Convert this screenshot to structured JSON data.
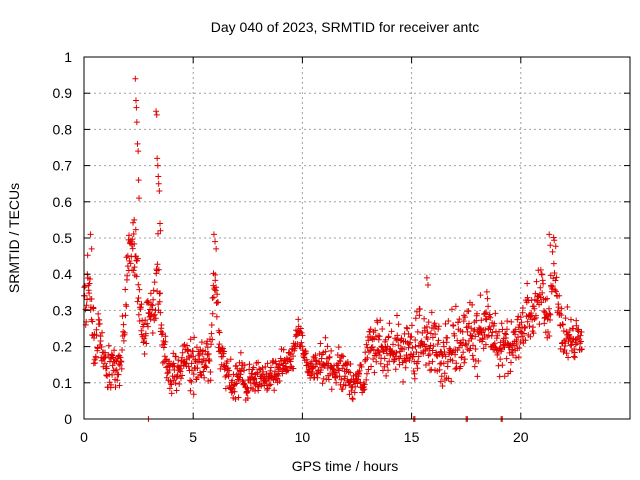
{
  "chart_data": {
    "type": "scatter",
    "title": "Day 040 of 2023, SRMTID for receiver antc",
    "xlabel": "GPS time / hours",
    "ylabel": "SRMTID / TECUs",
    "xlim": [
      0,
      25
    ],
    "ylim": [
      0,
      1
    ],
    "x_ticks": [
      0,
      5,
      10,
      15,
      20
    ],
    "x_tick_labels": [
      "0",
      "5",
      "10",
      "15",
      "20"
    ],
    "y_ticks": [
      0,
      0.1,
      0.2,
      0.3,
      0.4,
      0.5,
      0.6,
      0.7,
      0.8,
      0.9,
      1
    ],
    "y_tick_labels": [
      "0",
      "0.1",
      "0.2",
      "0.3",
      "0.4",
      "0.5",
      "0.6",
      "0.7",
      "0.8",
      "0.9",
      "1"
    ],
    "grid": true,
    "marker": "+",
    "color": "#e00000",
    "series_profile": {
      "name": "SRMTID",
      "x": [
        0.0,
        0.1,
        0.2,
        0.35,
        0.5,
        0.7,
        0.9,
        1.1,
        1.3,
        1.5,
        1.7,
        1.85,
        2.0,
        2.2,
        2.4,
        2.6,
        2.8,
        3.0,
        3.2,
        3.4,
        3.6,
        3.8,
        4.0,
        4.3,
        4.6,
        5.0,
        5.4,
        5.8,
        6.0,
        6.2,
        6.5,
        6.8,
        7.1,
        7.5,
        8.0,
        8.5,
        9.0,
        9.5,
        9.8,
        10.0,
        10.3,
        10.6,
        11.0,
        11.5,
        12.0,
        12.5,
        12.8,
        13.0,
        13.5,
        14.0,
        14.5,
        15.0,
        15.5,
        16.0,
        16.5,
        17.0,
        17.5,
        18.0,
        18.5,
        19.0,
        19.5,
        20.0,
        20.4,
        20.8,
        21.0,
        21.3,
        21.5,
        21.8,
        22.0,
        22.3,
        22.6,
        22.8
      ],
      "y": [
        0.35,
        0.33,
        0.42,
        0.28,
        0.18,
        0.25,
        0.15,
        0.14,
        0.15,
        0.12,
        0.18,
        0.25,
        0.46,
        0.5,
        0.44,
        0.28,
        0.25,
        0.3,
        0.3,
        0.38,
        0.2,
        0.15,
        0.12,
        0.14,
        0.17,
        0.16,
        0.15,
        0.18,
        0.42,
        0.2,
        0.12,
        0.1,
        0.12,
        0.1,
        0.11,
        0.12,
        0.14,
        0.16,
        0.25,
        0.2,
        0.13,
        0.14,
        0.16,
        0.14,
        0.12,
        0.11,
        0.09,
        0.2,
        0.21,
        0.19,
        0.2,
        0.18,
        0.22,
        0.2,
        0.18,
        0.2,
        0.22,
        0.24,
        0.26,
        0.19,
        0.2,
        0.24,
        0.28,
        0.33,
        0.35,
        0.27,
        0.44,
        0.26,
        0.24,
        0.22,
        0.22,
        0.2
      ],
      "spread": [
        0.04,
        0.06,
        0.08,
        0.06,
        0.05,
        0.05,
        0.05,
        0.05,
        0.04,
        0.04,
        0.05,
        0.06,
        0.07,
        0.08,
        0.08,
        0.06,
        0.06,
        0.06,
        0.06,
        0.08,
        0.05,
        0.04,
        0.04,
        0.04,
        0.04,
        0.05,
        0.05,
        0.05,
        0.06,
        0.05,
        0.04,
        0.04,
        0.04,
        0.04,
        0.03,
        0.03,
        0.03,
        0.03,
        0.03,
        0.03,
        0.03,
        0.03,
        0.04,
        0.04,
        0.04,
        0.04,
        0.04,
        0.05,
        0.06,
        0.06,
        0.06,
        0.06,
        0.07,
        0.07,
        0.06,
        0.07,
        0.07,
        0.07,
        0.08,
        0.06,
        0.05,
        0.05,
        0.06,
        0.06,
        0.05,
        0.05,
        0.06,
        0.05,
        0.05,
        0.05,
        0.05,
        0.04
      ],
      "samples_per_hour": 60
    },
    "outliers": [
      {
        "x": 2.35,
        "y": 0.94
      },
      {
        "x": 2.38,
        "y": 0.88
      },
      {
        "x": 2.4,
        "y": 0.86
      },
      {
        "x": 2.42,
        "y": 0.82
      },
      {
        "x": 2.45,
        "y": 0.76
      },
      {
        "x": 2.48,
        "y": 0.74
      },
      {
        "x": 2.5,
        "y": 0.66
      },
      {
        "x": 2.52,
        "y": 0.61
      },
      {
        "x": 2.3,
        "y": 0.55
      },
      {
        "x": 3.3,
        "y": 0.85
      },
      {
        "x": 3.33,
        "y": 0.84
      },
      {
        "x": 3.35,
        "y": 0.72
      },
      {
        "x": 3.38,
        "y": 0.7
      },
      {
        "x": 3.4,
        "y": 0.67
      },
      {
        "x": 3.42,
        "y": 0.65
      },
      {
        "x": 3.45,
        "y": 0.63
      },
      {
        "x": 3.48,
        "y": 0.54
      },
      {
        "x": 3.5,
        "y": 0.52
      },
      {
        "x": 5.95,
        "y": 0.51
      },
      {
        "x": 6.0,
        "y": 0.49
      },
      {
        "x": 6.05,
        "y": 0.47
      },
      {
        "x": 0.3,
        "y": 0.51
      },
      {
        "x": 0.35,
        "y": 0.47
      },
      {
        "x": 21.3,
        "y": 0.51
      },
      {
        "x": 21.35,
        "y": 0.48
      },
      {
        "x": 15.7,
        "y": 0.39
      },
      {
        "x": 15.75,
        "y": 0.37
      },
      {
        "x": 2.95,
        "y": 0.0
      },
      {
        "x": 15.1,
        "y": 0.0
      },
      {
        "x": 15.15,
        "y": 0.0
      },
      {
        "x": 17.5,
        "y": 0.0
      },
      {
        "x": 17.55,
        "y": 0.0
      },
      {
        "x": 19.1,
        "y": 0.0
      },
      {
        "x": 19.15,
        "y": 0.0
      }
    ]
  }
}
